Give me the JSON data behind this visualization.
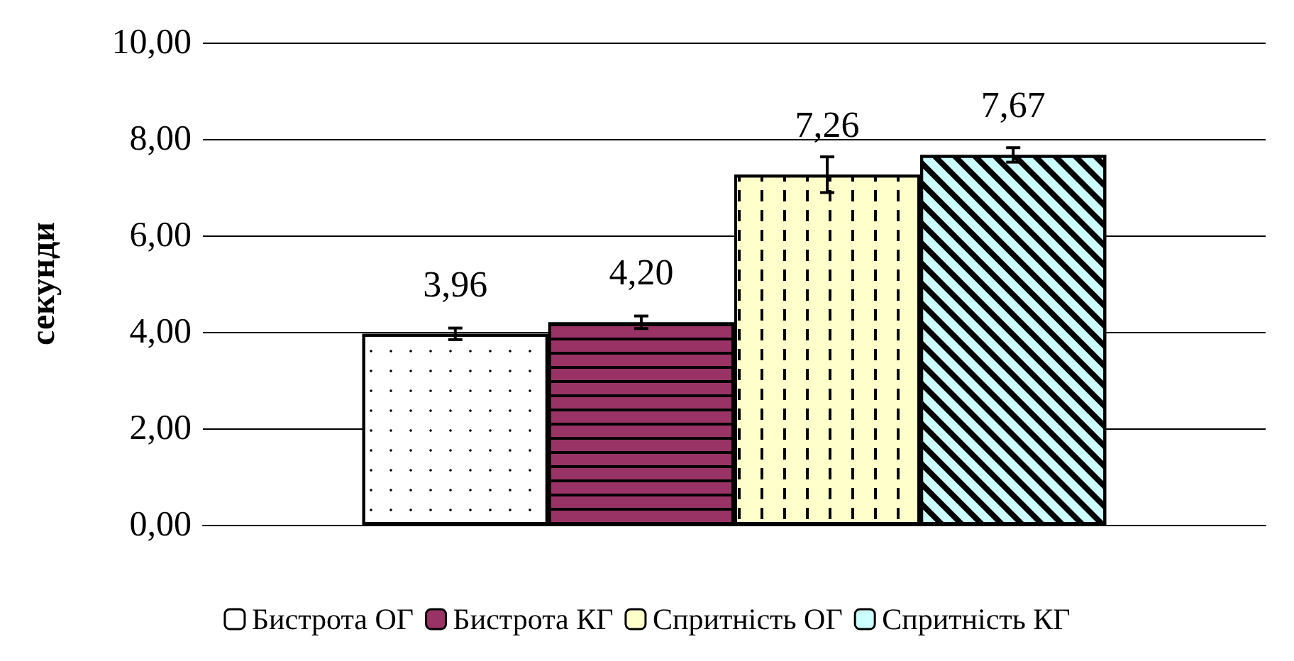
{
  "chart_data": {
    "type": "bar",
    "ylabel": "секунди",
    "categories": [
      null
    ],
    "series": [
      {
        "name": "Бистрота ОГ",
        "color": "#ffffff",
        "values": [
          3.96
        ],
        "errors": [
          0.12
        ],
        "value_labels": [
          "3,96"
        ]
      },
      {
        "name": "Бистрота КГ",
        "color": "#993366",
        "values": [
          4.2
        ],
        "errors": [
          0.13
        ],
        "value_labels": [
          "4,20"
        ]
      },
      {
        "name": "Спритність ОГ",
        "color": "#ffffcc",
        "values": [
          7.26
        ],
        "errors": [
          0.37
        ],
        "value_labels": [
          "7,26"
        ]
      },
      {
        "name": "Спритність КГ",
        "color": "#ccffff",
        "values": [
          7.67
        ],
        "errors": [
          0.15
        ],
        "value_labels": [
          "7,67"
        ]
      }
    ],
    "ylim": [
      0,
      10
    ],
    "yticks": [
      {
        "value": 0,
        "label": "0,00"
      },
      {
        "value": 2,
        "label": "2,00"
      },
      {
        "value": 4,
        "label": "4,00"
      },
      {
        "value": 6,
        "label": "6,00"
      },
      {
        "value": 8,
        "label": "8,00"
      },
      {
        "value": 10,
        "label": "10,00"
      }
    ],
    "grid": "y",
    "legend": "bottom"
  }
}
